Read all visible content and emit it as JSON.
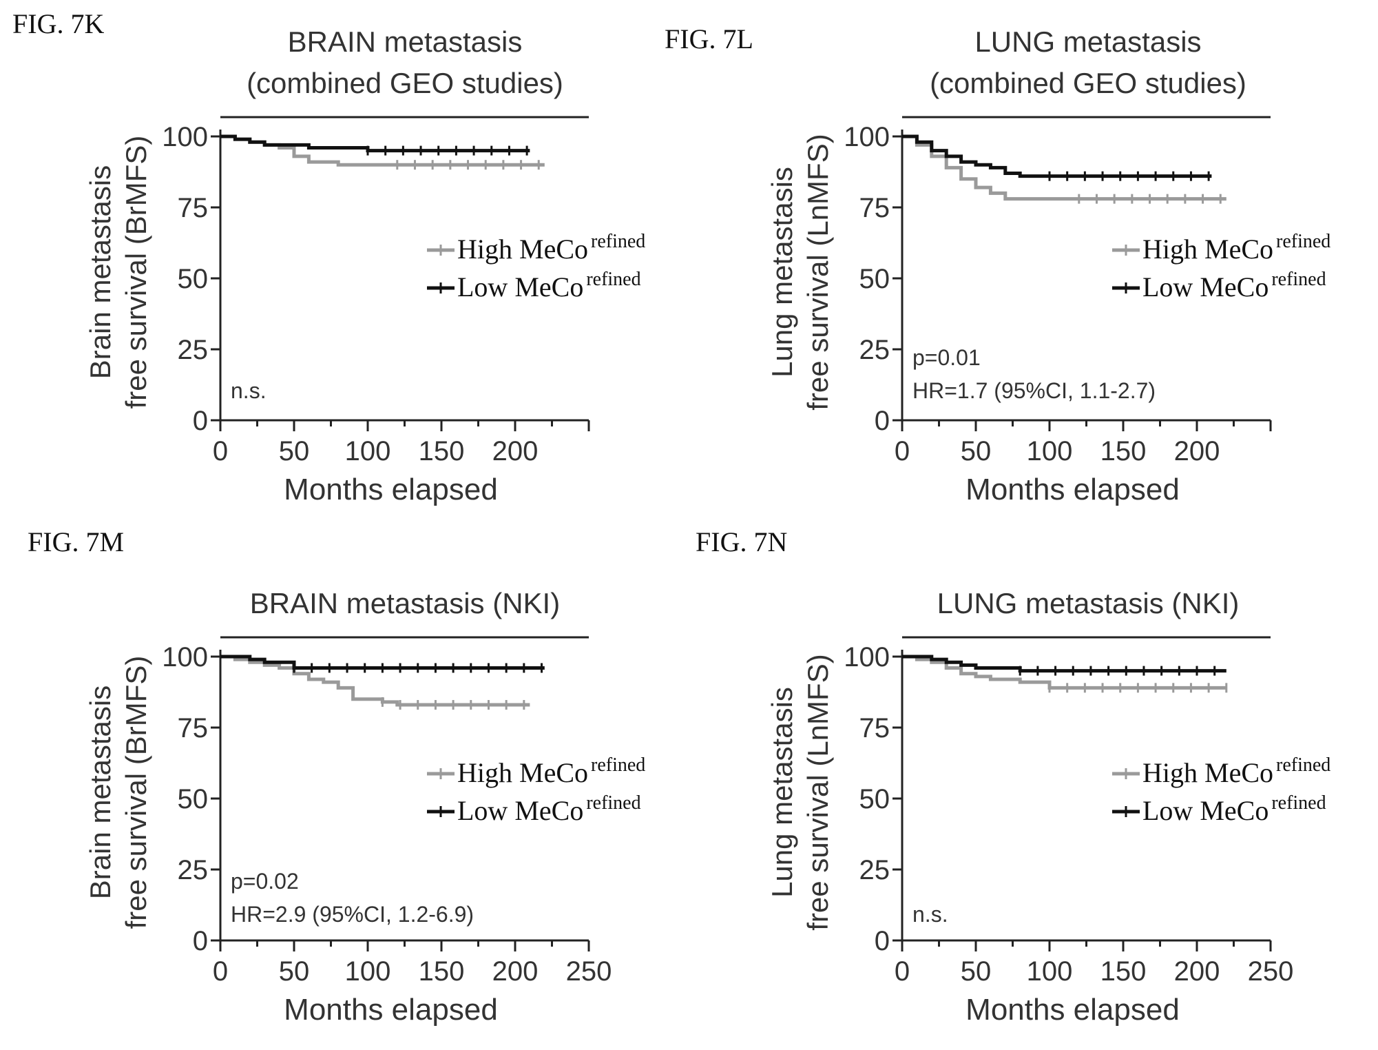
{
  "chart_data": [
    {
      "figure_label": "FIG. 7K",
      "type": "line",
      "title": [
        "BRAIN metastasis",
        "(combined GEO studies)"
      ],
      "ylabel": [
        "Brain metastasis",
        "free survival (BrMFS)"
      ],
      "xlabel": "Months elapsed",
      "xticks": [
        "0",
        "50",
        "100",
        "150",
        "200"
      ],
      "yticks": [
        "0",
        "25",
        "50",
        "75",
        "100"
      ],
      "xlim": [
        0,
        250
      ],
      "ylim": [
        0,
        100
      ],
      "legend": [
        {
          "name": "High MeCo",
          "sup": "refined",
          "color": "#9a9a9a"
        },
        {
          "name": "Low MeCo",
          "sup": "refined",
          "color": "#111111"
        }
      ],
      "annotations": [
        "n.s."
      ],
      "series": [
        {
          "name": "High MeCo refined",
          "color": "#9a9a9a",
          "x": [
            0,
            10,
            20,
            30,
            40,
            50,
            60,
            80,
            100,
            120,
            150,
            180,
            210,
            220
          ],
          "y": [
            100,
            99,
            98,
            97,
            96,
            93,
            91,
            90,
            90,
            90,
            90,
            90,
            90,
            90
          ]
        },
        {
          "name": "Low MeCo refined",
          "color": "#111111",
          "x": [
            0,
            10,
            20,
            30,
            40,
            60,
            80,
            100,
            120,
            150,
            180,
            210
          ],
          "y": [
            100,
            99,
            98,
            97,
            97,
            96,
            96,
            95,
            95,
            95,
            95,
            95
          ]
        }
      ]
    },
    {
      "figure_label": "FIG. 7L",
      "type": "line",
      "title": [
        "LUNG metastasis",
        "(combined GEO studies)"
      ],
      "ylabel": [
        "Lung metastasis",
        "free survival (LnMFS)"
      ],
      "xlabel": "Months elapsed",
      "xticks": [
        "0",
        "50",
        "100",
        "150",
        "200"
      ],
      "yticks": [
        "0",
        "25",
        "50",
        "75",
        "100"
      ],
      "xlim": [
        0,
        250
      ],
      "ylim": [
        0,
        100
      ],
      "legend": [
        {
          "name": "High MeCo",
          "sup": "refined",
          "color": "#9a9a9a"
        },
        {
          "name": "Low MeCo",
          "sup": "refined",
          "color": "#111111"
        }
      ],
      "annotations": [
        "p=0.01",
        "HR=1.7 (95%CI, 1.1-2.7)"
      ],
      "series": [
        {
          "name": "High MeCo refined",
          "color": "#9a9a9a",
          "x": [
            0,
            10,
            20,
            30,
            40,
            50,
            60,
            70,
            80,
            100,
            120,
            150,
            180,
            200,
            220
          ],
          "y": [
            100,
            97,
            93,
            89,
            85,
            82,
            80,
            78,
            78,
            78,
            78,
            78,
            78,
            78,
            78
          ]
        },
        {
          "name": "Low MeCo refined",
          "color": "#111111",
          "x": [
            0,
            10,
            20,
            30,
            40,
            50,
            60,
            70,
            80,
            100,
            120,
            150,
            180,
            210
          ],
          "y": [
            100,
            98,
            95,
            93,
            91,
            90,
            89,
            87,
            86,
            86,
            86,
            86,
            86,
            86
          ]
        }
      ]
    },
    {
      "figure_label": "FIG. 7M",
      "type": "line",
      "title": [
        "BRAIN metastasis (NKI)"
      ],
      "ylabel": [
        "Brain metastasis",
        "free survival (BrMFS)"
      ],
      "xlabel": "Months elapsed",
      "xticks": [
        "0",
        "50",
        "100",
        "150",
        "200",
        "250"
      ],
      "yticks": [
        "0",
        "25",
        "50",
        "75",
        "100"
      ],
      "xlim": [
        0,
        250
      ],
      "ylim": [
        0,
        100
      ],
      "legend": [
        {
          "name": "High MeCo",
          "sup": "refined",
          "color": "#9a9a9a"
        },
        {
          "name": "Low MeCo",
          "sup": "refined",
          "color": "#111111"
        }
      ],
      "annotations": [
        "p=0.02",
        "HR=2.9 (95%CI, 1.2-6.9)"
      ],
      "series": [
        {
          "name": "High MeCo refined",
          "color": "#9a9a9a",
          "x": [
            0,
            10,
            20,
            30,
            40,
            50,
            60,
            70,
            80,
            90,
            100,
            110,
            120,
            150,
            180,
            210
          ],
          "y": [
            100,
            99,
            98,
            97,
            96,
            94,
            92,
            91,
            89,
            85,
            85,
            84,
            83,
            83,
            83,
            83
          ]
        },
        {
          "name": "Low MeCo refined",
          "color": "#111111",
          "x": [
            0,
            10,
            20,
            30,
            40,
            50,
            100,
            150,
            200,
            220
          ],
          "y": [
            100,
            100,
            99,
            98,
            98,
            96,
            96,
            96,
            96,
            96
          ]
        }
      ]
    },
    {
      "figure_label": "FIG. 7N",
      "type": "line",
      "title": [
        "LUNG metastasis (NKI)"
      ],
      "ylabel": [
        "Lung metastasis",
        "free survival (LnMFS)"
      ],
      "xlabel": "Months elapsed",
      "xticks": [
        "0",
        "50",
        "100",
        "150",
        "200",
        "250"
      ],
      "yticks": [
        "0",
        "25",
        "50",
        "75",
        "100"
      ],
      "xlim": [
        0,
        250
      ],
      "ylim": [
        0,
        100
      ],
      "legend": [
        {
          "name": "High MeCo",
          "sup": "refined",
          "color": "#9a9a9a"
        },
        {
          "name": "Low MeCo",
          "sup": "refined",
          "color": "#111111"
        }
      ],
      "annotations": [
        "n.s."
      ],
      "series": [
        {
          "name": "High MeCo refined",
          "color": "#9a9a9a",
          "x": [
            0,
            10,
            20,
            30,
            40,
            50,
            60,
            80,
            100,
            120,
            150,
            180,
            220
          ],
          "y": [
            100,
            99,
            98,
            96,
            94,
            93,
            92,
            91,
            89,
            89,
            89,
            89,
            89
          ]
        },
        {
          "name": "Low MeCo refined",
          "color": "#111111",
          "x": [
            0,
            10,
            20,
            30,
            40,
            50,
            70,
            80,
            100,
            150,
            200,
            220
          ],
          "y": [
            100,
            100,
            99,
            98,
            97,
            96,
            96,
            95,
            95,
            95,
            95,
            95
          ]
        }
      ]
    }
  ]
}
